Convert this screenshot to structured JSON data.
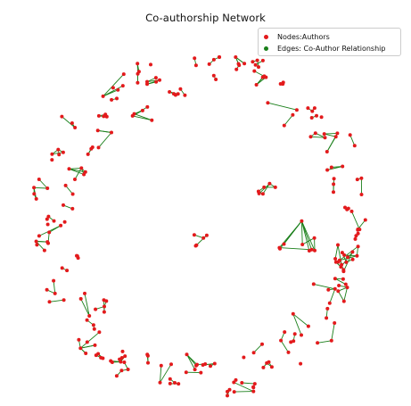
{
  "figure": {
    "title": "Co-authorship Network"
  },
  "legend": {
    "items": [
      {
        "label": "Nodes:Authors",
        "color": "#e31a1c",
        "marker": "circle"
      },
      {
        "label": "Edges: Co-Author Relationship",
        "color": "#1a7f1a",
        "marker": "circle"
      }
    ]
  },
  "colors": {
    "node_fill": "#e31a1c",
    "edge_stroke": "#1a7f1a"
  }
}
